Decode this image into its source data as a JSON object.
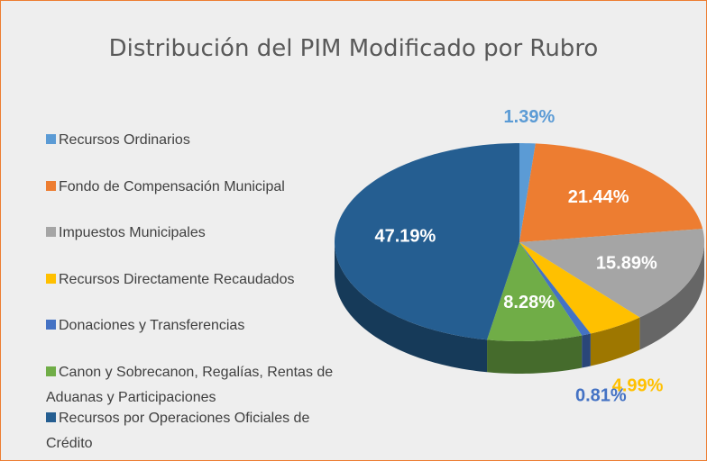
{
  "chart_data": {
    "type": "pie",
    "title": "Distribución del PIM Modificado por Rubro",
    "categories": [
      "Recursos Ordinarios",
      "Fondo de Compensación Municipal",
      "Impuestos Municipales",
      "Recursos Directamente Recaudados",
      "Donaciones y Transferencias",
      "Canon y Sobrecanon, Regalías, Rentas de Aduanas y Participaciones",
      "Recursos por Operaciones Oficiales de Crédito"
    ],
    "values": [
      1.39,
      21.44,
      15.89,
      4.99,
      0.81,
      8.28,
      47.19
    ],
    "value_labels": [
      "1.39%",
      "21.44%",
      "15.89%",
      "4.99%",
      "0.81%",
      "8.28%",
      "47.19%"
    ],
    "colors": [
      "#5b9bd5",
      "#ed7d31",
      "#a5a5a5",
      "#ffc000",
      "#4472c4",
      "#70ad47",
      "#255e91"
    ],
    "legend": "left"
  }
}
